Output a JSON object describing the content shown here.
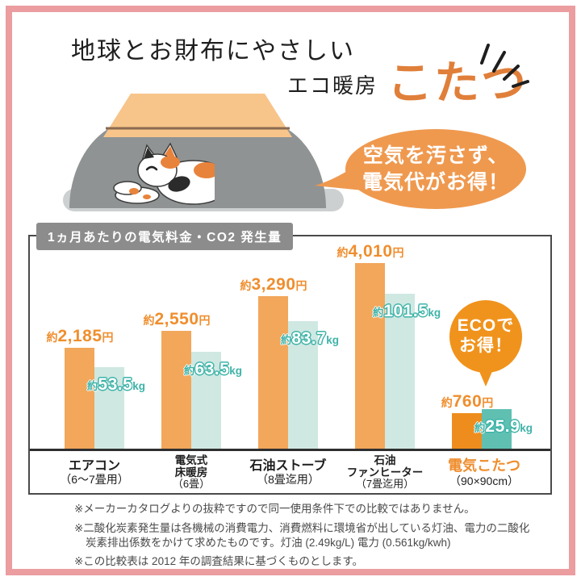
{
  "frame": {
    "color": "#eb9da0"
  },
  "header": {
    "title_line1": "地球とお財布にやさしい",
    "title_line2_prefix": "エコ暖房",
    "title_line2_main": "こたつ",
    "accent_color": "#e07f3a"
  },
  "speech_bubble": {
    "line1": "空気を汚さず、",
    "line2": "電気代がお得！",
    "bg_color": "#ef994f"
  },
  "illustration": {
    "subject": "こたつで眠る三毛猫",
    "table_color": "#f7c48a",
    "blanket_color": "#8f9394",
    "floor_color": "#cdd0d0",
    "cat_orange": "#e8833c",
    "cat_black": "#2b2b2b"
  },
  "chart": {
    "header_label": "1ヵ月あたりの電気料金・CO2 発生量",
    "header_bg": "#8c8c8c"
  },
  "chart_data": {
    "type": "bar",
    "title": "1ヵ月あたりの電気料金・CO2 発生量",
    "grid": false,
    "legend_position": "none",
    "highlight_index": 4,
    "categories": [
      {
        "line1": "エアコン",
        "line2": "",
        "sub": "（6～7畳用）"
      },
      {
        "line1": "電気式",
        "line2": "床暖房",
        "sub": "（6畳）"
      },
      {
        "line1": "石油ストーブ",
        "line2": "",
        "sub": "（8畳迄用）"
      },
      {
        "line1": "石油",
        "line2": "ファンヒーター",
        "sub": "（7畳迄用）"
      },
      {
        "line1": "電気こたつ",
        "line2": "",
        "sub": "（90×90cm）"
      }
    ],
    "series": [
      {
        "name": "電気料金（1ヵ月あたり・円）",
        "unit": "円",
        "axis_max": 4010,
        "bar_color": "#f2a75b",
        "highlight_bar_color": "#ee8d1d",
        "label_color": "#ef8e2e",
        "values": [
          2185,
          2550,
          3290,
          4010,
          760
        ],
        "labels": [
          {
            "prefix": "約",
            "amount": "2,185",
            "suffix": "円"
          },
          {
            "prefix": "約",
            "amount": "2,550",
            "suffix": "円"
          },
          {
            "prefix": "約",
            "amount": "3,290",
            "suffix": "円"
          },
          {
            "prefix": "約",
            "amount": "4,010",
            "suffix": "円"
          },
          {
            "prefix": "約",
            "amount": "760",
            "suffix": "円"
          }
        ]
      },
      {
        "name": "CO2発生量（1ヵ月あたり・kg）",
        "unit": "kg",
        "axis_max": 101.5,
        "bar_color": "#cfe8e2",
        "highlight_bar_color": "#5fc0b2",
        "label_color": "#3eb3a8",
        "values": [
          53.5,
          63.5,
          83.7,
          101.5,
          25.9
        ],
        "labels": [
          {
            "prefix": "約",
            "amount": "53.5",
            "suffix": "kg"
          },
          {
            "prefix": "約",
            "amount": "63.5",
            "suffix": "kg"
          },
          {
            "prefix": "約",
            "amount": "83.7",
            "suffix": "kg"
          },
          {
            "prefix": "約",
            "amount": "101.5",
            "suffix": "kg"
          },
          {
            "prefix": "約",
            "amount": "25.9",
            "suffix": "kg"
          }
        ]
      }
    ]
  },
  "eco_badge": {
    "line1": "ECOで",
    "line2": "お得！",
    "bg_color": "#f0931c"
  },
  "footnotes": [
    "※メーカーカタログよりの抜粋ですので同一使用条件下での比較ではありません。",
    "※二酸化炭素発生量は各機械の消費電力、消費燃料に環境省が出している灯油、電力の二酸化炭素排出係数をかけて求めたものです。灯油 (2.49kg/L) 電力 (0.561kg/kwh)",
    "※この比較表は 2012 年の調査結果に基づくものとします。"
  ]
}
